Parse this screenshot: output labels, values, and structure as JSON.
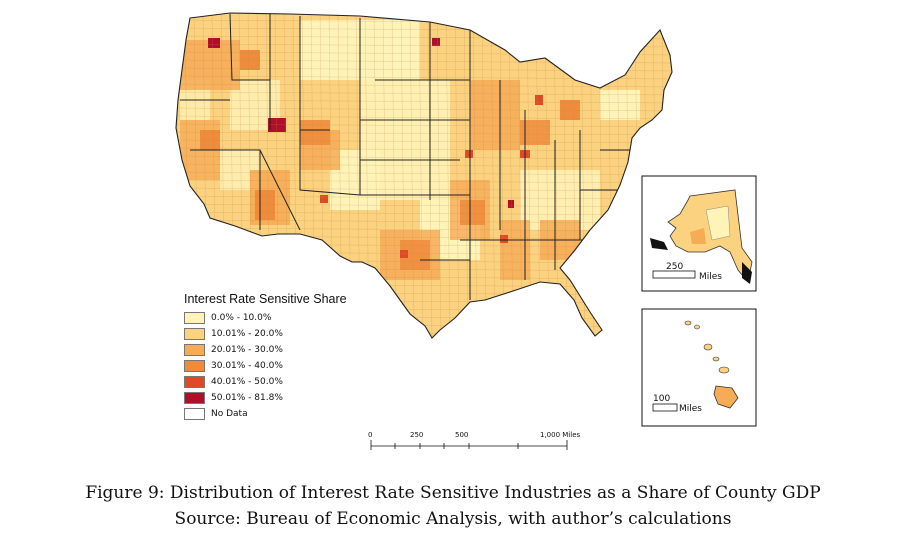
{
  "map": {
    "legend": {
      "title": "Interest Rate Sensitive Share",
      "items": [
        {
          "label": "0.0% - 10.0%",
          "color": "#fff3b8"
        },
        {
          "label": "10.01% - 20.0%",
          "color": "#fbd27f"
        },
        {
          "label": "20.01% - 30.0%",
          "color": "#f6ab56"
        },
        {
          "label": "30.01% - 40.0%",
          "color": "#ee8c3c"
        },
        {
          "label": "40.01% - 50.0%",
          "color": "#df4a26"
        },
        {
          "label": "50.01% - 81.8%",
          "color": "#b00f2a"
        },
        {
          "label": "No Data",
          "color": "#ffffff"
        }
      ]
    },
    "scale_bar": {
      "ticks": [
        "0",
        "250",
        "500",
        "1,000 Miles"
      ]
    },
    "insets": {
      "alaska": {
        "scale_value": "250",
        "scale_unit": "Miles"
      },
      "hawaii": {
        "scale_value": "100",
        "scale_unit": "Miles"
      }
    }
  },
  "caption": {
    "line1": "Figure 9: Distribution of Interest Rate Sensitive Industries as a Share of County GDP",
    "line2": "Source: Bureau of Economic Analysis, with author’s calculations"
  }
}
